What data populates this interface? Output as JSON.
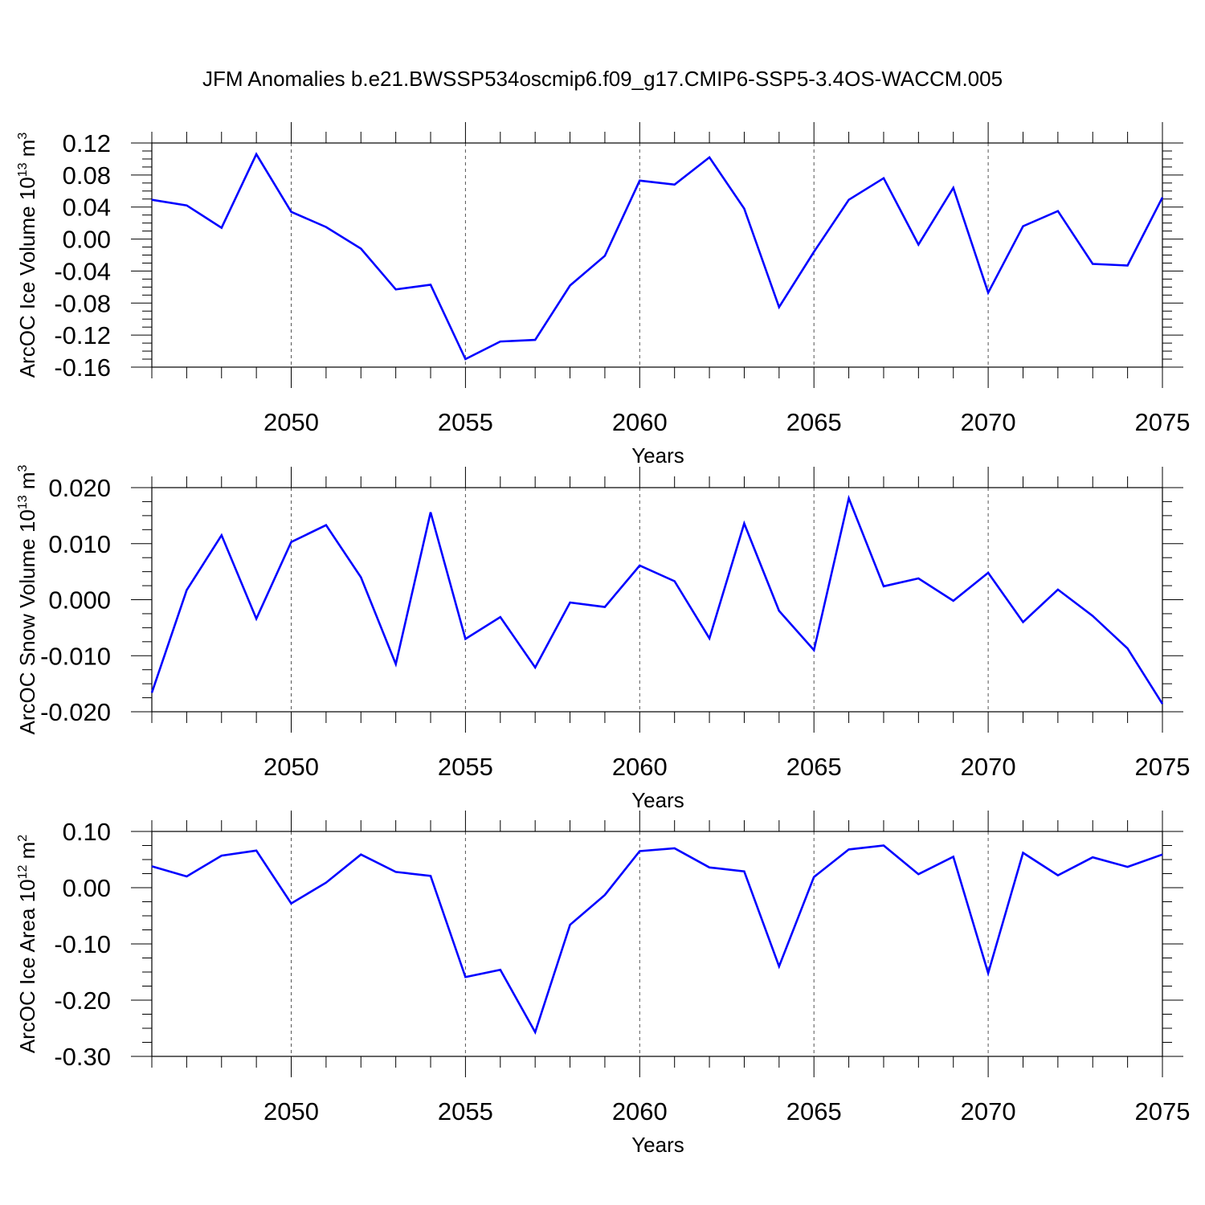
{
  "title": "JFM Anomalies b.e21.BWSSP534oscmip6.f09_g17.CMIP6-SSP5-3.4OS-WACCM.005",
  "chart_data": [
    {
      "type": "line",
      "ylabel": "ArcOC Ice Volume 10",
      "ylabel_exp": "13",
      "ylabel_unit": "m",
      "ylabel_unit_exp": "3",
      "xlabel": "Years",
      "xlim": [
        2046,
        2075
      ],
      "ylim": [
        -0.16,
        0.12
      ],
      "yticks": [
        0.12,
        0.08,
        0.04,
        0.0,
        -0.04,
        -0.08,
        -0.12,
        -0.16
      ],
      "ytick_labels": [
        "0.12",
        "0.08",
        "0.04",
        "0.00",
        "-0.04",
        "-0.08",
        "-0.12",
        "-0.16"
      ],
      "xticks": [
        2050,
        2055,
        2060,
        2065,
        2070,
        2075
      ],
      "xtick_labels": [
        "2050",
        "2055",
        "2060",
        "2065",
        "2070",
        "2075"
      ],
      "grid": "vertical dashed at major x ticks",
      "line_color": "#0000ff",
      "x": [
        2046,
        2047,
        2048,
        2049,
        2050,
        2051,
        2052,
        2053,
        2054,
        2055,
        2056,
        2057,
        2058,
        2059,
        2060,
        2061,
        2062,
        2063,
        2064,
        2065,
        2066,
        2067,
        2068,
        2069,
        2070,
        2071,
        2072,
        2073,
        2074,
        2075
      ],
      "values": [
        0.049,
        0.042,
        0.014,
        0.106,
        0.034,
        0.015,
        -0.012,
        -0.063,
        -0.057,
        -0.15,
        -0.128,
        -0.126,
        -0.058,
        -0.021,
        0.073,
        0.068,
        0.102,
        0.038,
        -0.085,
        -0.016,
        0.049,
        0.076,
        -0.007,
        0.064,
        -0.067,
        0.016,
        0.035,
        -0.031,
        -0.033,
        0.052
      ]
    },
    {
      "type": "line",
      "ylabel": "ArcOC Snow Volume 10",
      "ylabel_exp": "13",
      "ylabel_unit": "m",
      "ylabel_unit_exp": "3",
      "xlabel": "Years",
      "xlim": [
        2046,
        2075
      ],
      "ylim": [
        -0.02,
        0.02
      ],
      "yticks": [
        0.02,
        0.01,
        0.0,
        -0.01,
        -0.02
      ],
      "ytick_labels": [
        "0.020",
        "0.010",
        "0.000",
        "-0.010",
        "-0.020"
      ],
      "xticks": [
        2050,
        2055,
        2060,
        2065,
        2070,
        2075
      ],
      "xtick_labels": [
        "2050",
        "2055",
        "2060",
        "2065",
        "2070",
        "2075"
      ],
      "grid": "vertical dashed at major x ticks",
      "line_color": "#0000ff",
      "x": [
        2046,
        2047,
        2048,
        2049,
        2050,
        2051,
        2052,
        2053,
        2054,
        2055,
        2056,
        2057,
        2058,
        2059,
        2060,
        2061,
        2062,
        2063,
        2064,
        2065,
        2066,
        2067,
        2068,
        2069,
        2070,
        2071,
        2072,
        2073,
        2074,
        2075
      ],
      "values": [
        -0.0166,
        0.0017,
        0.0115,
        -0.0034,
        0.0103,
        0.0133,
        0.004,
        -0.0115,
        0.0156,
        -0.007,
        -0.0031,
        -0.0121,
        -0.0005,
        -0.0013,
        0.0061,
        0.0033,
        -0.0069,
        0.0136,
        -0.002,
        -0.009,
        0.0181,
        0.0024,
        0.0038,
        -0.0002,
        0.0048,
        -0.004,
        0.0018,
        -0.0029,
        -0.0087,
        -0.0186
      ]
    },
    {
      "type": "line",
      "ylabel": "ArcOC Ice Area 10",
      "ylabel_exp": "12",
      "ylabel_unit": "m",
      "ylabel_unit_exp": "2",
      "xlabel": "Years",
      "xlim": [
        2046,
        2075
      ],
      "ylim": [
        -0.3,
        0.1
      ],
      "yticks": [
        0.1,
        0.0,
        -0.1,
        -0.2,
        -0.3
      ],
      "ytick_labels": [
        "0.10",
        "0.00",
        "-0.10",
        "-0.20",
        "-0.30"
      ],
      "xticks": [
        2050,
        2055,
        2060,
        2065,
        2070,
        2075
      ],
      "xtick_labels": [
        "2050",
        "2055",
        "2060",
        "2065",
        "2070",
        "2075"
      ],
      "grid": "vertical dashed at major x ticks",
      "line_color": "#0000ff",
      "x": [
        2046,
        2047,
        2048,
        2049,
        2050,
        2051,
        2052,
        2053,
        2054,
        2055,
        2056,
        2057,
        2058,
        2059,
        2060,
        2061,
        2062,
        2063,
        2064,
        2065,
        2066,
        2067,
        2068,
        2069,
        2070,
        2071,
        2072,
        2073,
        2074,
        2075
      ],
      "values": [
        0.038,
        0.02,
        0.057,
        0.066,
        -0.028,
        0.009,
        0.059,
        0.028,
        0.021,
        -0.159,
        -0.146,
        -0.257,
        -0.066,
        -0.013,
        0.065,
        0.07,
        0.036,
        0.029,
        -0.14,
        0.019,
        0.068,
        0.075,
        0.024,
        0.055,
        -0.152,
        0.062,
        0.022,
        0.054,
        0.037,
        0.059
      ]
    }
  ]
}
